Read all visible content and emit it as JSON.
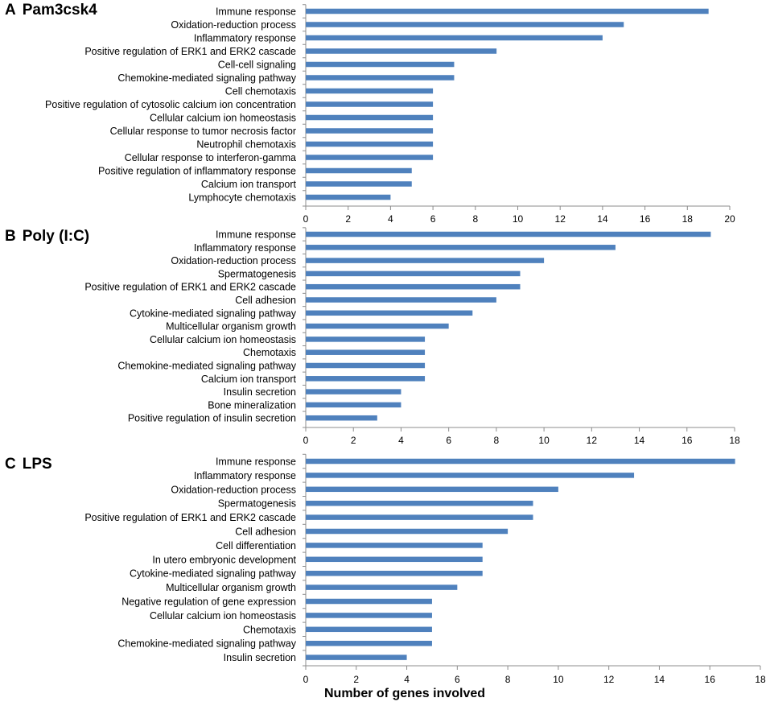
{
  "chart_data": [
    {
      "type": "bar",
      "orientation": "horizontal",
      "panel_letter": "A",
      "title": "Pam3csk4",
      "categories": [
        "Immune response",
        "Oxidation-reduction process",
        "Inflammatory response",
        "Positive regulation of ERK1 and ERK2 cascade",
        "Cell-cell signaling",
        "Chemokine-mediated signaling pathway",
        "Cell chemotaxis",
        "Positive regulation of cytosolic calcium ion concentration",
        "Cellular calcium ion homeostasis",
        "Cellular response to tumor necrosis factor",
        "Neutrophil chemotaxis",
        "Cellular response to interferon-gamma",
        "Positive regulation of inflammatory response",
        "Calcium ion transport",
        "Lymphocyte chemotaxis"
      ],
      "values": [
        19,
        15,
        14,
        9,
        7,
        7,
        6,
        6,
        6,
        6,
        6,
        6,
        5,
        5,
        4
      ],
      "xlim": [
        0,
        20
      ],
      "xticks": [
        0,
        2,
        4,
        6,
        8,
        10,
        12,
        14,
        16,
        18,
        20
      ],
      "xlabel": "",
      "color": "#4f81bd"
    },
    {
      "type": "bar",
      "orientation": "horizontal",
      "panel_letter": "B",
      "title": "Poly (I:C)",
      "categories": [
        "Immune response",
        "Inflammatory response",
        "Oxidation-reduction process",
        "Spermatogenesis",
        "Positive regulation of ERK1 and ERK2 cascade",
        "Cell adhesion",
        "Cytokine-mediated signaling pathway",
        "Multicellular organism growth",
        "Cellular calcium ion homeostasis",
        "Chemotaxis",
        "Chemokine-mediated signaling pathway",
        "Calcium ion transport",
        "Insulin secretion",
        "Bone mineralization",
        "Positive regulation of insulin secretion"
      ],
      "values": [
        17,
        13,
        10,
        9,
        9,
        8,
        7,
        6,
        5,
        5,
        5,
        5,
        4,
        4,
        3
      ],
      "xlim": [
        0,
        18
      ],
      "xticks": [
        0,
        2,
        4,
        6,
        8,
        10,
        12,
        14,
        16,
        18
      ],
      "xlabel": "",
      "color": "#4f81bd"
    },
    {
      "type": "bar",
      "orientation": "horizontal",
      "panel_letter": "C",
      "title": "LPS",
      "categories": [
        "Immune response",
        "Inflammatory response",
        "Oxidation-reduction process",
        "Spermatogenesis",
        "Positive regulation of ERK1 and ERK2 cascade",
        "Cell adhesion",
        "Cell differentiation",
        "In utero embryonic development",
        "Cytokine-mediated signaling pathway",
        "Multicellular organism growth",
        "Negative regulation of gene expression",
        "Cellular calcium ion homeostasis",
        "Chemotaxis",
        "Chemokine-mediated signaling pathway",
        "Insulin secretion"
      ],
      "values": [
        17,
        13,
        10,
        9,
        9,
        8,
        7,
        7,
        7,
        6,
        5,
        5,
        5,
        5,
        4
      ],
      "xlim": [
        0,
        18
      ],
      "xticks": [
        0,
        2,
        4,
        6,
        8,
        10,
        12,
        14,
        16,
        18
      ],
      "xlabel": "Number of genes involved",
      "color": "#4f81bd"
    }
  ]
}
